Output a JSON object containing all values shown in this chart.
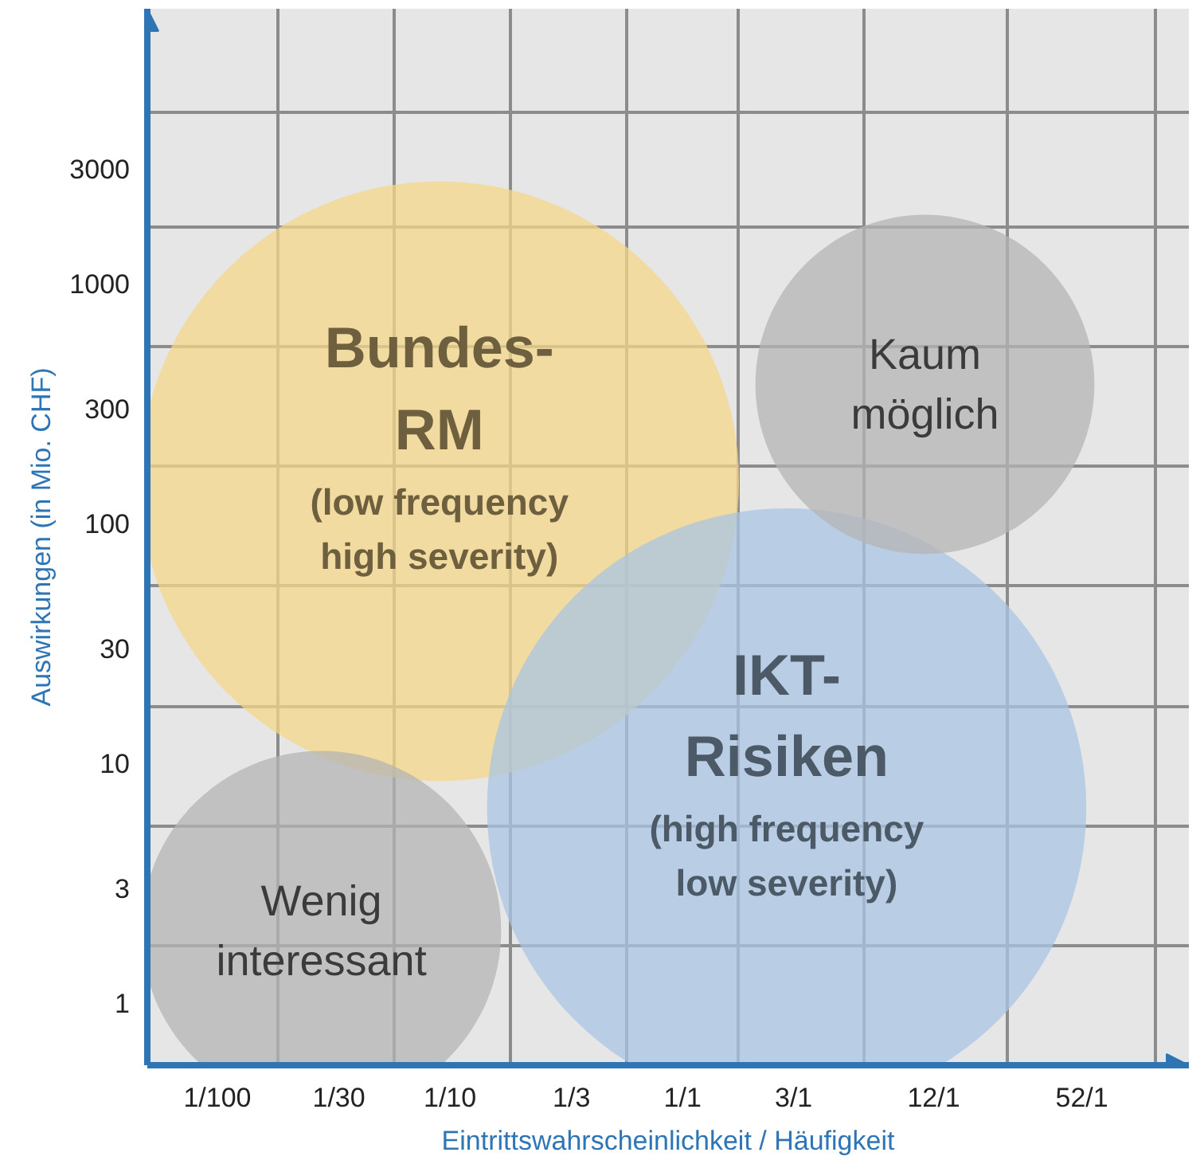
{
  "chart_data": {
    "type": "bubble",
    "xlabel": "Eintrittswahrscheinlichkeit / Häufigkeit",
    "ylabel": "Auswirkungen (in Mio. CHF)",
    "log": "xy",
    "xlim": [
      0.005,
      150
    ],
    "ylim": [
      0.55,
      14000
    ],
    "xticks": [
      {
        "value": 0.01,
        "label": "1/100"
      },
      {
        "value": 0.0333,
        "label": "1/30"
      },
      {
        "value": 0.1,
        "label": "1/10"
      },
      {
        "value": 0.333,
        "label": "1/3"
      },
      {
        "value": 1,
        "label": "1/1"
      },
      {
        "value": 3,
        "label": "3/1"
      },
      {
        "value": 12,
        "label": "12/1"
      },
      {
        "value": 52,
        "label": "52/1"
      }
    ],
    "yticks": [
      1,
      3,
      10,
      30,
      100,
      300,
      1000,
      3000
    ],
    "grid": true,
    "series": [
      {
        "name": "Bundes-\nRM",
        "color": "#f5d78a",
        "x": [
          0.09
        ],
        "values": [
          150
        ],
        "sizes": [
          1
        ]
      },
      {
        "name": "IKT-\nRisiken",
        "color": "#a9c6e3",
        "x": [
          2.8
        ],
        "values": [
          6.5
        ],
        "sizes": [
          1
        ]
      },
      {
        "name": "Kaum\nmöglich",
        "color": "#b4b4b4",
        "x": [
          11
        ],
        "values": [
          380
        ],
        "sizes": [
          0.32
        ]
      },
      {
        "name": "Wenig\ninteressant",
        "color": "#b4b4b4",
        "x": [
          0.028
        ],
        "values": [
          2
        ],
        "sizes": [
          0.36
        ]
      }
    ],
    "annotations": [
      "(low frequency\nhigh severity)",
      "(high frequency\nlow severity)"
    ]
  }
}
